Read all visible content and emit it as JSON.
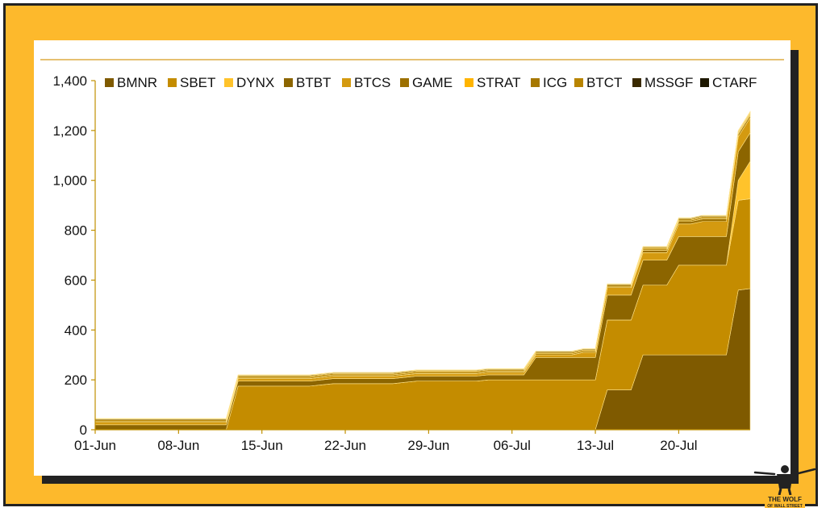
{
  "colors": {
    "frame": "#fdb92c",
    "rule": "#d69a1c",
    "axis": "#c09000"
  },
  "watermark": {
    "line1": "THE WOLF",
    "line2": "OF WALL STREET"
  },
  "chart_data": {
    "type": "area",
    "stacked": true,
    "x_unit": "days from 01-Jun",
    "xticks": [
      "01-Jun",
      "08-Jun",
      "15-Jun",
      "22-Jun",
      "29-Jun",
      "06-Jul",
      "13-Jul",
      "20-Jul"
    ],
    "xtick_days": [
      0,
      7,
      14,
      21,
      28,
      35,
      42,
      49
    ],
    "yticks": [
      "0",
      "200",
      "400",
      "600",
      "800",
      "1,000",
      "1,200",
      "1,400"
    ],
    "ylim": [
      0,
      1400
    ],
    "legend_position": "top",
    "legend": [
      "BMNR",
      "SBET",
      "DYNX",
      "BTBT",
      "BTCS",
      "GAME",
      "STRAT",
      "ICG",
      "BTCT",
      "MSSGF",
      "CTARF"
    ],
    "x": [
      0,
      11,
      12,
      13,
      14,
      15,
      16,
      17,
      18,
      19,
      20,
      21,
      22,
      23,
      24,
      25,
      26,
      27,
      28,
      29,
      30,
      31,
      32,
      33,
      34,
      35,
      36,
      37,
      38,
      39,
      40,
      41,
      42,
      43,
      44,
      45,
      46,
      47,
      48,
      49,
      50,
      51,
      52,
      53,
      54,
      55
    ],
    "series": [
      {
        "name": "BMNR",
        "color": "#7f5a00",
        "values": [
          0,
          0,
          0,
          0,
          0,
          0,
          0,
          0,
          0,
          0,
          0,
          0,
          0,
          0,
          0,
          0,
          0,
          0,
          0,
          0,
          0,
          0,
          0,
          0,
          0,
          0,
          0,
          0,
          0,
          0,
          0,
          0,
          0,
          160,
          160,
          160,
          300,
          300,
          300,
          300,
          300,
          300,
          300,
          300,
          560,
          566
        ]
      },
      {
        "name": "SBET",
        "color": "#c48c00",
        "values": [
          0,
          0,
          175,
          175,
          175,
          175,
          175,
          175,
          175,
          180,
          185,
          185,
          185,
          185,
          185,
          185,
          190,
          195,
          195,
          195,
          195,
          195,
          195,
          200,
          200,
          200,
          200,
          200,
          200,
          200,
          200,
          200,
          200,
          280,
          280,
          280,
          280,
          280,
          280,
          360,
          360,
          360,
          360,
          360,
          360,
          360
        ]
      },
      {
        "name": "DYNX",
        "color": "#ffc32b",
        "values": [
          0,
          0,
          0,
          0,
          0,
          0,
          0,
          0,
          0,
          0,
          0,
          0,
          0,
          0,
          0,
          0,
          0,
          0,
          0,
          0,
          0,
          0,
          0,
          0,
          0,
          0,
          0,
          0,
          0,
          0,
          0,
          0,
          0,
          0,
          0,
          0,
          0,
          0,
          0,
          0,
          0,
          0,
          0,
          0,
          80,
          150
        ]
      },
      {
        "name": "BTBT",
        "color": "#8c6500",
        "values": [
          20,
          20,
          20,
          20,
          20,
          20,
          20,
          20,
          20,
          20,
          20,
          20,
          20,
          20,
          20,
          20,
          20,
          20,
          20,
          20,
          20,
          20,
          20,
          20,
          20,
          20,
          20,
          90,
          90,
          90,
          90,
          90,
          90,
          100,
          100,
          100,
          100,
          100,
          100,
          115,
          115,
          115,
          115,
          115,
          115,
          115
        ]
      },
      {
        "name": "BTCS",
        "color": "#d49a10",
        "values": [
          10,
          10,
          10,
          10,
          10,
          10,
          10,
          10,
          10,
          10,
          10,
          10,
          10,
          10,
          10,
          10,
          10,
          10,
          10,
          10,
          10,
          10,
          10,
          10,
          10,
          10,
          10,
          10,
          10,
          10,
          10,
          20,
          20,
          30,
          30,
          30,
          30,
          30,
          30,
          50,
          50,
          60,
          60,
          60,
          60,
          60
        ]
      },
      {
        "name": "GAME",
        "color": "#9c7000",
        "values": [
          0,
          0,
          0,
          0,
          0,
          0,
          0,
          0,
          0,
          0,
          0,
          0,
          0,
          0,
          0,
          0,
          0,
          0,
          0,
          0,
          0,
          0,
          0,
          0,
          0,
          0,
          0,
          0,
          0,
          0,
          0,
          0,
          0,
          0,
          0,
          0,
          10,
          10,
          10,
          10,
          10,
          10,
          10,
          10,
          10,
          10
        ]
      },
      {
        "name": "STRAT",
        "color": "#ffb400",
        "values": [
          0,
          0,
          0,
          0,
          0,
          0,
          0,
          0,
          0,
          0,
          0,
          0,
          0,
          0,
          0,
          0,
          0,
          0,
          0,
          0,
          0,
          0,
          0,
          0,
          0,
          0,
          0,
          0,
          0,
          0,
          0,
          0,
          0,
          0,
          0,
          0,
          0,
          0,
          0,
          0,
          0,
          0,
          0,
          0,
          0,
          0
        ]
      },
      {
        "name": "ICG",
        "color": "#a67800",
        "values": [
          5,
          5,
          5,
          5,
          5,
          5,
          5,
          5,
          5,
          5,
          5,
          5,
          5,
          5,
          5,
          5,
          5,
          5,
          5,
          5,
          5,
          5,
          5,
          5,
          5,
          5,
          5,
          5,
          5,
          5,
          5,
          5,
          5,
          5,
          5,
          5,
          5,
          5,
          5,
          5,
          5,
          5,
          5,
          5,
          5,
          5
        ]
      },
      {
        "name": "BTCT",
        "color": "#b88400",
        "values": [
          5,
          5,
          5,
          5,
          5,
          5,
          5,
          5,
          5,
          5,
          5,
          5,
          5,
          5,
          5,
          5,
          5,
          5,
          5,
          5,
          5,
          5,
          5,
          5,
          5,
          5,
          5,
          5,
          5,
          5,
          5,
          5,
          5,
          5,
          5,
          5,
          5,
          5,
          5,
          5,
          5,
          5,
          5,
          5,
          5,
          5
        ]
      },
      {
        "name": "MSSGF",
        "color": "#3a2a00",
        "values": [
          3,
          3,
          3,
          3,
          3,
          3,
          3,
          3,
          3,
          3,
          3,
          3,
          3,
          3,
          3,
          3,
          3,
          3,
          3,
          3,
          3,
          3,
          3,
          3,
          3,
          3,
          3,
          3,
          3,
          3,
          3,
          3,
          3,
          3,
          3,
          3,
          3,
          3,
          3,
          3,
          3,
          3,
          3,
          3,
          3,
          3
        ]
      },
      {
        "name": "CTARF",
        "color": "#1e1800",
        "values": [
          2,
          2,
          2,
          2,
          2,
          2,
          2,
          2,
          2,
          2,
          2,
          2,
          2,
          2,
          2,
          2,
          2,
          2,
          2,
          2,
          2,
          2,
          2,
          2,
          2,
          2,
          2,
          2,
          2,
          2,
          2,
          2,
          2,
          2,
          2,
          2,
          2,
          2,
          2,
          2,
          2,
          2,
          2,
          2,
          2,
          2
        ]
      }
    ]
  }
}
